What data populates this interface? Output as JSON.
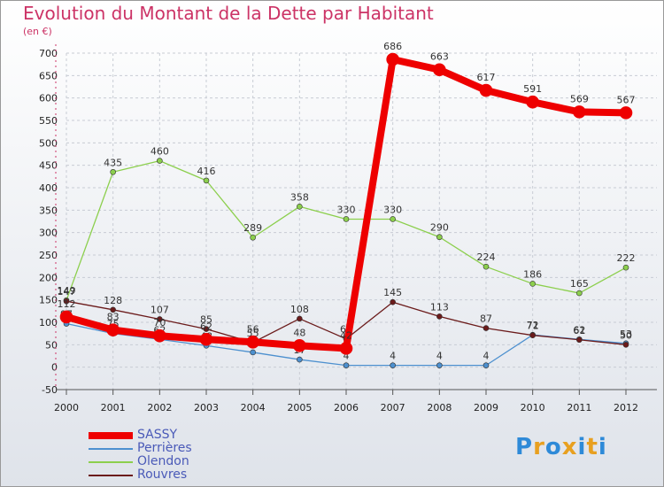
{
  "title": "Evolution du Montant de la Dette par Habitant",
  "unit": "(en €)",
  "logo": {
    "text": "Proxiti",
    "colors": [
      "#2e8ad8",
      "#e8a020",
      "#2e8ad8",
      "#e8a020",
      "#2e8ad8",
      "#e8a020",
      "#2e8ad8"
    ]
  },
  "chart_data": {
    "type": "line",
    "x": [
      "2000",
      "2001",
      "2002",
      "2003",
      "2004",
      "2005",
      "2006",
      "2007",
      "2008",
      "2009",
      "2010",
      "2011",
      "2012"
    ],
    "ylim": [
      -50,
      700
    ],
    "yticks": [
      -50,
      0,
      50,
      100,
      150,
      200,
      250,
      300,
      350,
      400,
      450,
      500,
      550,
      600,
      650,
      700
    ],
    "grid": true,
    "legend_position": "bottom-left",
    "series": [
      {
        "name": "Perrières",
        "color": "#4d90cf",
        "values": [
          97,
          75,
          62,
          48,
          33,
          17,
          4,
          4,
          4,
          4,
          72,
          62,
          53
        ]
      },
      {
        "name": "Olendon",
        "color": "#8ccf4d",
        "values": [
          149,
          435,
          460,
          416,
          289,
          358,
          330,
          330,
          290,
          224,
          186,
          165,
          222
        ]
      },
      {
        "name": "Rouvres",
        "color": "#6b1b1b",
        "values": [
          147,
          128,
          107,
          85,
          55,
          108,
          63,
          145,
          113,
          87,
          71,
          61,
          50
        ]
      },
      {
        "name": "SASSY",
        "color": "#ee0000",
        "values": [
          112,
          83,
          70,
          62,
          56,
          48,
          42,
          686,
          663,
          617,
          591,
          569,
          567
        ]
      }
    ],
    "legend": [
      "SASSY",
      "Perrières",
      "Olendon",
      "Rouvres"
    ]
  }
}
